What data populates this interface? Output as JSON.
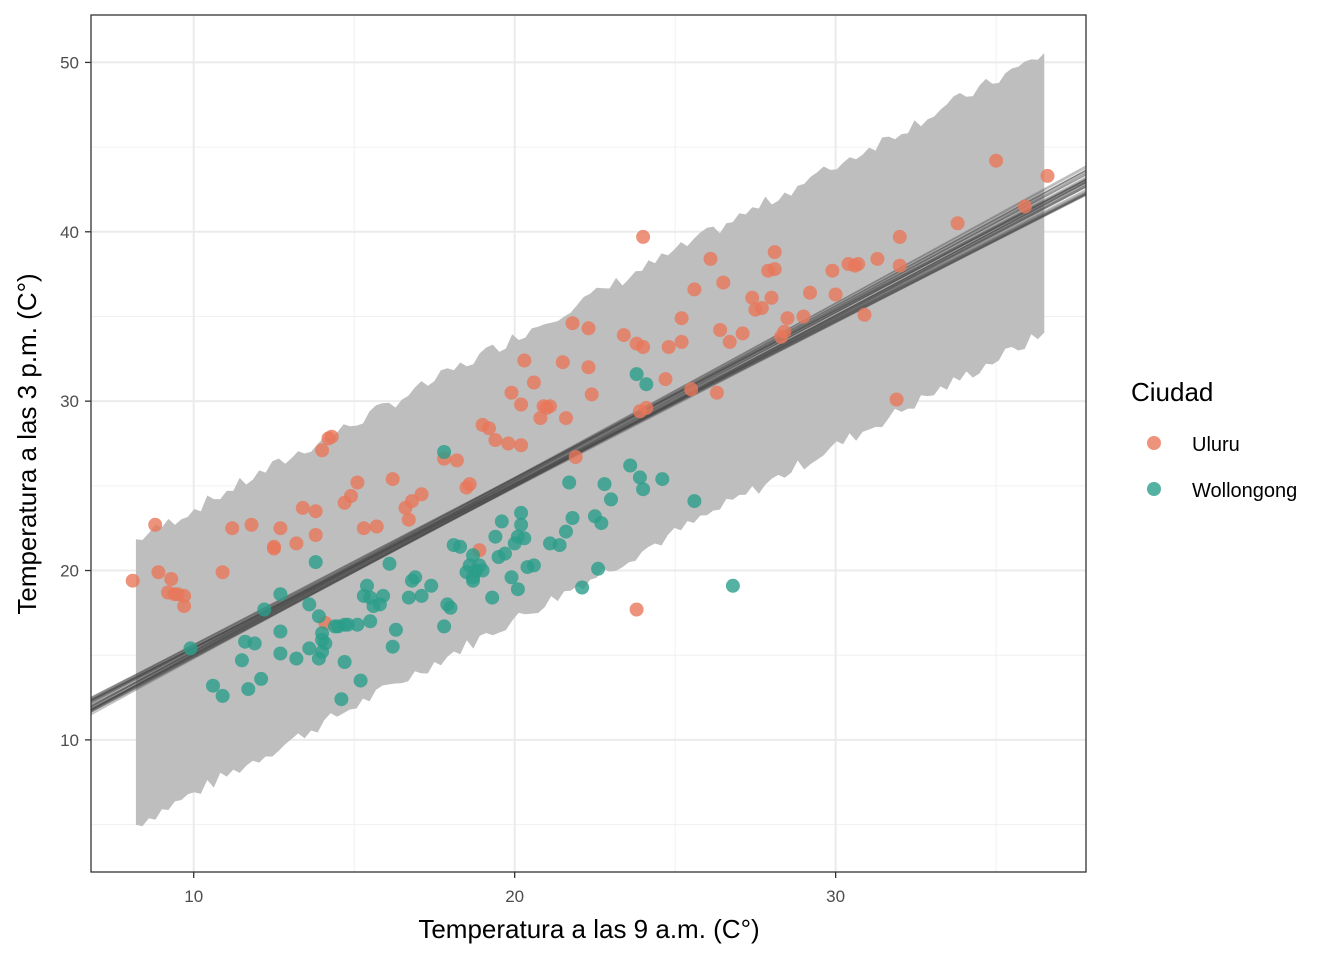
{
  "chart_data": {
    "type": "scatter",
    "title": "",
    "xlabel": "Temperatura a las 9 a.m. (C°)",
    "ylabel": "Temperatura a las 3 p.m. (C°)",
    "xlim": [
      6.8,
      37.8
    ],
    "ylim": [
      2.2,
      52.8
    ],
    "x_ticks": [
      10,
      20,
      30
    ],
    "y_ticks": [
      10,
      20,
      30,
      40,
      50
    ],
    "x_tick_labels": [
      "10",
      "20",
      "30"
    ],
    "y_tick_labels": [
      "10",
      "20",
      "30",
      "40",
      "50"
    ],
    "grid": true,
    "legend": {
      "title": "Ciudad",
      "position": "right",
      "entries": [
        {
          "label": "Uluru",
          "color": "#e8775a"
        },
        {
          "label": "Wollongong",
          "color": "#2a9d8a"
        }
      ]
    },
    "prediction_band": {
      "x_range": [
        8.2,
        36.5
      ],
      "lower_at_x_min": 5.0,
      "upper_at_x_min": 21.8,
      "lower_at_x_max": 34.0,
      "upper_at_x_max": 50.5,
      "color": "#bebebe"
    },
    "regression_line": {
      "slope": 1.0,
      "intercept": 5.2,
      "color": "#4d4d4d"
    },
    "series": [
      {
        "name": "Uluru",
        "color": "#e8775a",
        "x": [
          8.1,
          8.8,
          8.9,
          9.2,
          9.3,
          9.4,
          9.5,
          9.7,
          9.7,
          10.9,
          11.2,
          11.8,
          12.5,
          12.5,
          12.7,
          13.2,
          13.4,
          13.8,
          13.8,
          14.0,
          14.2,
          14.3,
          14.7,
          14.9,
          15.1,
          15.3,
          15.7,
          16.2,
          16.6,
          16.7,
          16.8,
          17.1,
          17.8,
          18.2,
          18.5,
          18.6,
          18.9,
          19.0,
          19.2,
          19.4,
          19.8,
          19.9,
          20.2,
          20.2,
          20.3,
          20.6,
          20.8,
          20.9,
          21.0,
          21.1,
          21.5,
          21.6,
          21.8,
          21.9,
          22.3,
          22.3,
          22.4,
          23.4,
          23.8,
          23.9,
          24.0,
          24.0,
          24.1,
          24.7,
          24.8,
          25.2,
          25.2,
          25.5,
          25.6,
          26.1,
          26.3,
          26.4,
          26.5,
          26.7,
          27.1,
          27.4,
          27.5,
          27.7,
          27.9,
          28.0,
          28.1,
          28.1,
          28.3,
          28.4,
          28.5,
          29.0,
          29.2,
          29.9,
          30.0,
          30.4,
          30.6,
          30.7,
          30.9,
          31.3,
          31.9,
          32.0,
          32.0,
          33.8,
          35.0,
          35.9,
          36.6,
          23.8,
          14.1
        ],
        "y": [
          19.4,
          22.7,
          19.9,
          18.7,
          19.5,
          18.6,
          18.6,
          18.5,
          17.9,
          19.9,
          22.5,
          22.7,
          21.3,
          21.4,
          22.5,
          21.6,
          23.7,
          22.1,
          23.5,
          27.1,
          27.8,
          27.9,
          24.0,
          24.4,
          25.2,
          22.5,
          22.6,
          25.4,
          23.7,
          23.0,
          24.1,
          24.5,
          26.6,
          26.5,
          24.9,
          25.1,
          21.2,
          28.6,
          28.4,
          27.7,
          27.5,
          30.5,
          29.8,
          27.4,
          32.4,
          31.1,
          29.0,
          29.7,
          29.6,
          29.7,
          32.3,
          29.0,
          34.6,
          26.7,
          34.3,
          32.0,
          30.4,
          33.9,
          33.4,
          29.4,
          33.2,
          39.7,
          29.6,
          31.3,
          33.2,
          33.5,
          34.9,
          30.7,
          36.6,
          38.4,
          30.5,
          34.2,
          37.0,
          33.5,
          34.0,
          36.1,
          35.4,
          35.5,
          37.7,
          36.1,
          38.8,
          37.8,
          33.8,
          34.1,
          34.9,
          35.0,
          36.4,
          37.7,
          36.3,
          38.1,
          38.0,
          38.1,
          35.1,
          38.4,
          30.1,
          39.7,
          38.0,
          40.5,
          44.2,
          41.5,
          43.3,
          17.7,
          16.9
        ]
      },
      {
        "name": "Wollongong",
        "color": "#2a9d8a",
        "x": [
          9.9,
          10.6,
          10.9,
          11.5,
          11.6,
          11.7,
          11.9,
          12.1,
          12.2,
          12.7,
          12.7,
          12.7,
          13.2,
          13.6,
          13.6,
          13.8,
          13.9,
          13.9,
          14.0,
          14.0,
          14.0,
          14.1,
          14.4,
          14.5,
          14.6,
          14.7,
          14.7,
          14.8,
          15.1,
          15.2,
          15.3,
          15.4,
          15.5,
          15.5,
          15.6,
          15.8,
          15.9,
          16.1,
          16.2,
          16.3,
          16.7,
          16.8,
          16.9,
          17.1,
          17.4,
          17.8,
          17.9,
          18.0,
          18.1,
          18.3,
          18.5,
          18.6,
          18.7,
          18.7,
          18.7,
          18.8,
          18.9,
          19.0,
          19.3,
          19.4,
          19.5,
          19.6,
          19.7,
          19.9,
          20.0,
          20.1,
          20.1,
          20.2,
          20.2,
          20.3,
          20.4,
          20.6,
          21.1,
          21.4,
          21.6,
          21.7,
          21.8,
          22.1,
          22.5,
          22.6,
          22.7,
          22.8,
          23.0,
          23.6,
          23.8,
          23.9,
          24.0,
          24.1,
          24.6,
          25.6,
          26.8,
          17.8
        ],
        "y": [
          15.4,
          13.2,
          12.6,
          14.7,
          15.8,
          13.0,
          15.7,
          13.6,
          17.7,
          16.4,
          15.1,
          18.6,
          14.8,
          18.0,
          15.4,
          20.5,
          17.3,
          14.8,
          15.2,
          16.3,
          15.9,
          15.7,
          16.7,
          16.7,
          12.4,
          14.6,
          16.8,
          16.8,
          16.8,
          13.5,
          18.5,
          19.1,
          18.4,
          17.0,
          17.9,
          18.0,
          18.5,
          20.4,
          15.5,
          16.5,
          18.4,
          19.4,
          19.6,
          18.5,
          19.1,
          16.7,
          18.0,
          17.8,
          21.5,
          21.4,
          19.9,
          20.3,
          20.9,
          19.4,
          19.6,
          20.0,
          20.3,
          20.0,
          18.4,
          22.0,
          20.8,
          22.9,
          21.0,
          19.6,
          21.6,
          22.0,
          18.9,
          23.4,
          22.7,
          21.9,
          20.2,
          20.3,
          21.6,
          21.5,
          22.3,
          25.2,
          23.1,
          19.0,
          23.2,
          20.1,
          22.8,
          25.1,
          24.2,
          26.2,
          31.6,
          25.5,
          24.8,
          31.0,
          25.4,
          24.1,
          19.1,
          27.0
        ]
      }
    ]
  }
}
